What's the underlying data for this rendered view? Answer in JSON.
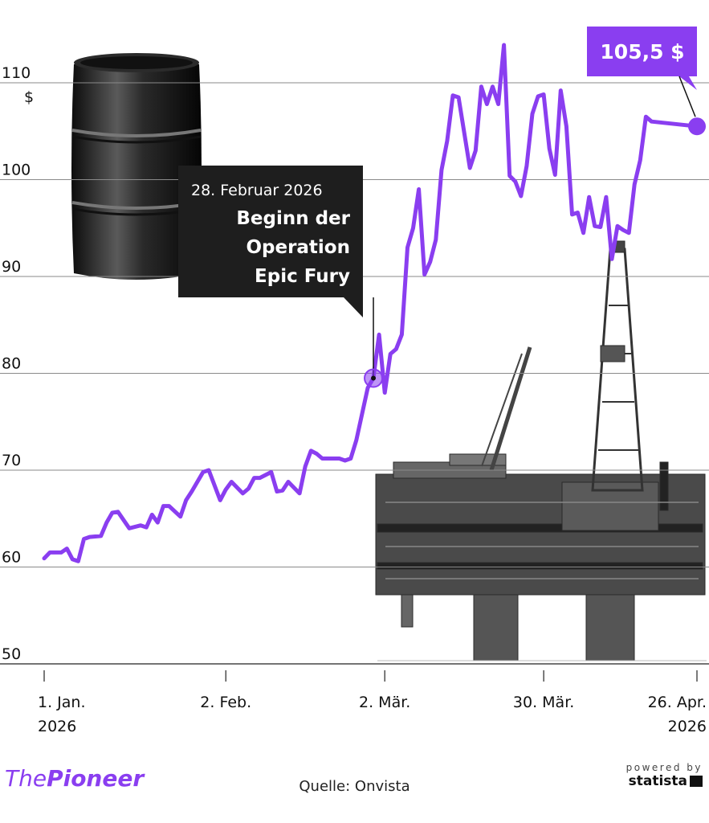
{
  "chart_data": {
    "type": "line",
    "y_unit": "$",
    "ylim": [
      50,
      115
    ],
    "y_ticks": [
      50,
      60,
      70,
      80,
      90,
      100,
      110
    ],
    "x_ticks": [
      {
        "date": "2026-01-01",
        "line1": "1. Jan.",
        "line2": "2026"
      },
      {
        "date": "2026-02-02",
        "line1": "2. Feb.",
        "line2": ""
      },
      {
        "date": "2026-03-02",
        "line1": "2. Mär.",
        "line2": ""
      },
      {
        "date": "2026-03-30",
        "line1": "30. Mär.",
        "line2": ""
      },
      {
        "date": "2026-04-26",
        "line1": "26. Apr.",
        "line2": "2026"
      }
    ],
    "xlim": [
      "2026-01-01",
      "2026-04-26"
    ],
    "grid": true,
    "series": [
      {
        "color": "#8a3ef0",
        "points": [
          [
            "2026-01-01",
            60.9
          ],
          [
            "2026-01-02",
            61.5
          ],
          [
            "2026-01-04",
            61.5
          ],
          [
            "2026-01-05",
            61.9
          ],
          [
            "2026-01-06",
            60.8
          ],
          [
            "2026-01-07",
            60.6
          ],
          [
            "2026-01-08",
            62.9
          ],
          [
            "2026-01-09",
            63.1
          ],
          [
            "2026-01-11",
            63.2
          ],
          [
            "2026-01-12",
            64.6
          ],
          [
            "2026-01-13",
            65.6
          ],
          [
            "2026-01-14",
            65.7
          ],
          [
            "2026-01-16",
            64.0
          ],
          [
            "2026-01-18",
            64.3
          ],
          [
            "2026-01-19",
            64.1
          ],
          [
            "2026-01-20",
            65.4
          ],
          [
            "2026-01-21",
            64.6
          ],
          [
            "2026-01-22",
            66.3
          ],
          [
            "2026-01-23",
            66.3
          ],
          [
            "2026-01-25",
            65.2
          ],
          [
            "2026-01-26",
            66.9
          ],
          [
            "2026-01-27",
            67.8
          ],
          [
            "2026-01-29",
            69.8
          ],
          [
            "2026-01-30",
            70.0
          ],
          [
            "2026-02-01",
            66.9
          ],
          [
            "2026-02-02",
            68.0
          ],
          [
            "2026-02-03",
            68.8
          ],
          [
            "2026-02-05",
            67.6
          ],
          [
            "2026-02-06",
            68.1
          ],
          [
            "2026-02-07",
            69.2
          ],
          [
            "2026-02-08",
            69.2
          ],
          [
            "2026-02-10",
            69.8
          ],
          [
            "2026-02-11",
            67.8
          ],
          [
            "2026-02-12",
            67.9
          ],
          [
            "2026-02-13",
            68.8
          ],
          [
            "2026-02-15",
            67.6
          ],
          [
            "2026-02-16",
            70.4
          ],
          [
            "2026-02-17",
            72.0
          ],
          [
            "2026-02-18",
            71.7
          ],
          [
            "2026-02-19",
            71.2
          ],
          [
            "2026-02-21",
            71.2
          ],
          [
            "2026-02-22",
            71.2
          ],
          [
            "2026-02-23",
            71.0
          ],
          [
            "2026-02-24",
            71.2
          ],
          [
            "2026-02-25",
            73.1
          ],
          [
            "2026-02-27",
            78.5
          ],
          [
            "2026-02-28",
            79.5
          ],
          [
            "2026-03-01",
            84.0
          ],
          [
            "2026-03-02",
            78.0
          ],
          [
            "2026-03-03",
            82.0
          ],
          [
            "2026-03-04",
            82.5
          ],
          [
            "2026-03-05",
            84.0
          ],
          [
            "2026-03-06",
            93.0
          ],
          [
            "2026-03-07",
            95.0
          ],
          [
            "2026-03-08",
            99.0
          ],
          [
            "2026-03-09",
            90.2
          ],
          [
            "2026-03-10",
            91.5
          ],
          [
            "2026-03-11",
            93.8
          ],
          [
            "2026-03-12",
            101.0
          ],
          [
            "2026-03-13",
            104.0
          ],
          [
            "2026-03-14",
            108.7
          ],
          [
            "2026-03-15",
            108.5
          ],
          [
            "2026-03-17",
            101.2
          ],
          [
            "2026-03-18",
            103.0
          ],
          [
            "2026-03-19",
            109.6
          ],
          [
            "2026-03-20",
            107.8
          ],
          [
            "2026-03-21",
            109.6
          ],
          [
            "2026-03-22",
            107.8
          ],
          [
            "2026-03-23",
            113.9
          ],
          [
            "2026-03-24",
            100.4
          ],
          [
            "2026-03-25",
            99.8
          ],
          [
            "2026-03-26",
            98.3
          ],
          [
            "2026-03-27",
            101.4
          ],
          [
            "2026-03-28",
            106.8
          ],
          [
            "2026-03-29",
            108.6
          ],
          [
            "2026-03-30",
            108.8
          ],
          [
            "2026-03-31",
            103.2
          ],
          [
            "2026-04-01",
            100.5
          ],
          [
            "2026-04-02",
            109.2
          ],
          [
            "2026-04-03",
            105.5
          ],
          [
            "2026-04-04",
            96.4
          ],
          [
            "2026-04-05",
            96.6
          ],
          [
            "2026-04-06",
            94.5
          ],
          [
            "2026-04-07",
            98.2
          ],
          [
            "2026-04-08",
            95.2
          ],
          [
            "2026-04-09",
            95.1
          ],
          [
            "2026-04-10",
            98.2
          ],
          [
            "2026-04-11",
            91.8
          ],
          [
            "2026-04-12",
            95.2
          ],
          [
            "2026-04-13",
            94.8
          ],
          [
            "2026-04-14",
            94.5
          ],
          [
            "2026-04-15",
            99.5
          ],
          [
            "2026-04-16",
            102.0
          ],
          [
            "2026-04-17",
            106.5
          ],
          [
            "2026-04-18",
            106.0
          ],
          [
            "2026-04-26",
            105.5
          ]
        ]
      }
    ],
    "annotations": [
      {
        "date": "2026-02-28",
        "value": 79.5,
        "label_date": "28. Februar 2026",
        "label_lines": [
          "Beginn der",
          "Operation",
          "Epic Fury"
        ]
      },
      {
        "date": "2026-04-26",
        "value": 105.5,
        "label": "105,5 $"
      }
    ]
  },
  "footer": {
    "brand_the": "The",
    "brand_pioneer": "Pioneer",
    "source": "Quelle: Onvista",
    "powered_by": "powered by",
    "statista": "statista"
  }
}
